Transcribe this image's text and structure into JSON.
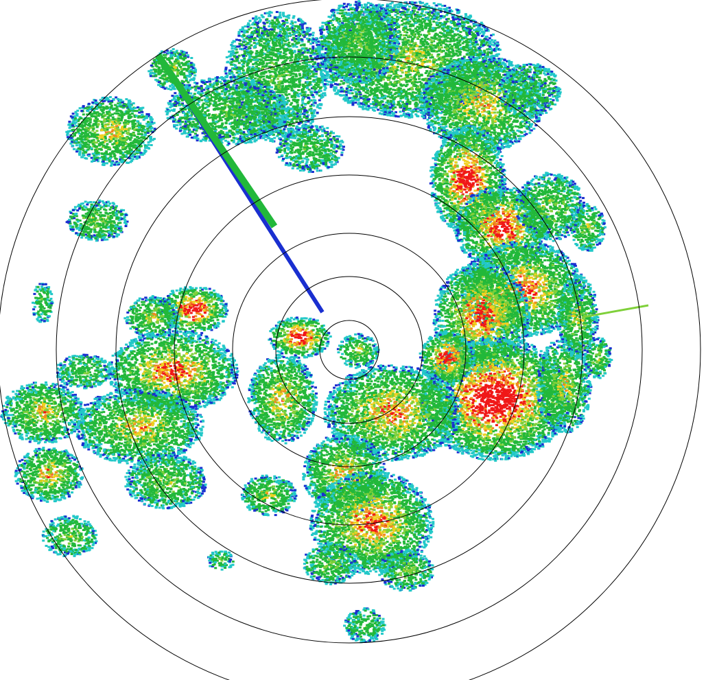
{
  "radar": {
    "range_ring_count": 7,
    "colors": {
      "background": "#ffffff",
      "ring": "#000000",
      "very_light": "#1a2fd0",
      "light": "#22c8c8",
      "moderate": "#22b83a",
      "moderate_strong": "#7fd03a",
      "heavy": "#f0d020",
      "very_heavy": "#f08a20",
      "intense": "#f01818"
    }
  }
}
